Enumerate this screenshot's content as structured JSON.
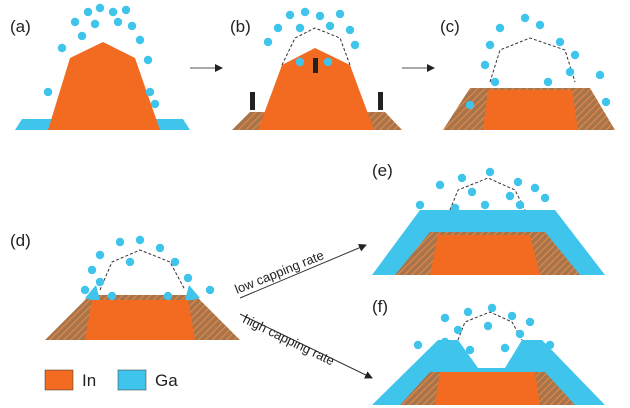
{
  "panels": [
    {
      "label": "(a)"
    },
    {
      "label": "(b)"
    },
    {
      "label": "(c)"
    },
    {
      "label": "(d)"
    },
    {
      "label": "(e)"
    },
    {
      "label": "(f)"
    }
  ],
  "arrows": [
    {
      "label": "low capping rate"
    },
    {
      "label": "high capping rate"
    }
  ],
  "legend": [
    {
      "label": "In"
    },
    {
      "label": "Ga"
    }
  ]
}
